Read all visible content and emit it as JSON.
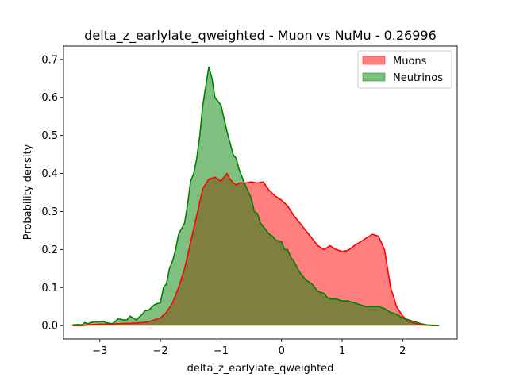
{
  "chart_data": {
    "type": "area",
    "title": "delta_z_earlylate_qweighted - Muon vs NuMu - 0.26996",
    "xlabel": "delta_z_earlylate_qweighted",
    "ylabel": "Probability density",
    "xlim": [
      -3.6,
      2.9
    ],
    "ylim": [
      -0.035,
      0.735
    ],
    "xticks": [
      -3,
      -2,
      -1,
      0,
      1,
      2
    ],
    "xtick_labels": [
      "−3",
      "−2",
      "−1",
      "0",
      "1",
      "2"
    ],
    "yticks": [
      0.0,
      0.1,
      0.2,
      0.3,
      0.4,
      0.5,
      0.6,
      0.7
    ],
    "ytick_labels": [
      "0.0",
      "0.1",
      "0.2",
      "0.3",
      "0.4",
      "0.5",
      "0.6",
      "0.7"
    ],
    "grid": false,
    "legend_position": "top-right",
    "series": [
      {
        "name": "Muons",
        "line_color": "#ff0000",
        "fill_color": "#ff0000",
        "fill_opacity": 0.5,
        "x": [
          -3.45,
          -3.3,
          -3.2,
          -3.1,
          -3.0,
          -2.9,
          -2.8,
          -2.7,
          -2.6,
          -2.5,
          -2.4,
          -2.3,
          -2.2,
          -2.1,
          -2.0,
          -1.9,
          -1.8,
          -1.7,
          -1.6,
          -1.5,
          -1.4,
          -1.3,
          -1.2,
          -1.1,
          -1.0,
          -0.95,
          -0.9,
          -0.85,
          -0.8,
          -0.75,
          -0.7,
          -0.6,
          -0.5,
          -0.4,
          -0.3,
          -0.25,
          -0.2,
          -0.1,
          0.0,
          0.1,
          0.2,
          0.3,
          0.4,
          0.5,
          0.6,
          0.7,
          0.8,
          0.9,
          1.0,
          1.1,
          1.2,
          1.3,
          1.4,
          1.5,
          1.6,
          1.7,
          1.8,
          1.9,
          2.0,
          2.1,
          2.2,
          2.3,
          2.4,
          2.5,
          2.6
        ],
        "y": [
          0.0,
          0.0,
          0.002,
          0.003,
          0.004,
          0.004,
          0.004,
          0.005,
          0.006,
          0.006,
          0.007,
          0.008,
          0.01,
          0.015,
          0.02,
          0.035,
          0.06,
          0.1,
          0.15,
          0.22,
          0.29,
          0.36,
          0.385,
          0.39,
          0.38,
          0.39,
          0.4,
          0.385,
          0.375,
          0.37,
          0.375,
          0.375,
          0.378,
          0.375,
          0.378,
          0.365,
          0.355,
          0.34,
          0.33,
          0.315,
          0.29,
          0.27,
          0.25,
          0.23,
          0.21,
          0.2,
          0.21,
          0.2,
          0.195,
          0.198,
          0.21,
          0.22,
          0.23,
          0.24,
          0.235,
          0.2,
          0.1,
          0.05,
          0.025,
          0.012,
          0.006,
          0.003,
          0.001,
          0.0,
          0.0
        ]
      },
      {
        "name": "Neutrinos",
        "line_color": "#008000",
        "fill_color": "#008000",
        "fill_opacity": 0.5,
        "x": [
          -3.45,
          -3.35,
          -3.3,
          -3.25,
          -3.2,
          -3.1,
          -3.0,
          -2.95,
          -2.9,
          -2.8,
          -2.75,
          -2.7,
          -2.6,
          -2.55,
          -2.5,
          -2.45,
          -2.4,
          -2.3,
          -2.25,
          -2.2,
          -2.1,
          -2.05,
          -2.0,
          -1.95,
          -1.9,
          -1.85,
          -1.8,
          -1.75,
          -1.7,
          -1.6,
          -1.55,
          -1.5,
          -1.45,
          -1.4,
          -1.35,
          -1.3,
          -1.25,
          -1.2,
          -1.15,
          -1.1,
          -1.05,
          -1.0,
          -0.9,
          -0.8,
          -0.75,
          -0.7,
          -0.6,
          -0.5,
          -0.45,
          -0.4,
          -0.35,
          -0.3,
          -0.25,
          -0.2,
          -0.15,
          -0.1,
          0.0,
          0.05,
          0.1,
          0.15,
          0.2,
          0.3,
          0.4,
          0.45,
          0.5,
          0.6,
          0.7,
          0.75,
          0.8,
          0.9,
          1.0,
          1.1,
          1.2,
          1.3,
          1.4,
          1.5,
          1.6,
          1.7,
          1.8,
          1.9,
          2.0,
          2.1,
          2.2,
          2.3,
          2.4,
          2.5,
          2.6
        ],
        "y": [
          0.002,
          0.003,
          0.002,
          0.008,
          0.005,
          0.01,
          0.01,
          0.012,
          0.008,
          0.005,
          0.01,
          0.018,
          0.015,
          0.015,
          0.025,
          0.02,
          0.015,
          0.03,
          0.04,
          0.04,
          0.055,
          0.058,
          0.06,
          0.1,
          0.11,
          0.15,
          0.17,
          0.2,
          0.24,
          0.27,
          0.32,
          0.38,
          0.4,
          0.44,
          0.5,
          0.58,
          0.63,
          0.68,
          0.65,
          0.6,
          0.59,
          0.58,
          0.51,
          0.45,
          0.44,
          0.41,
          0.37,
          0.335,
          0.3,
          0.295,
          0.27,
          0.26,
          0.25,
          0.24,
          0.235,
          0.225,
          0.22,
          0.2,
          0.2,
          0.18,
          0.17,
          0.14,
          0.12,
          0.115,
          0.11,
          0.09,
          0.085,
          0.075,
          0.07,
          0.07,
          0.065,
          0.065,
          0.06,
          0.055,
          0.05,
          0.05,
          0.05,
          0.045,
          0.035,
          0.03,
          0.02,
          0.015,
          0.01,
          0.005,
          0.002,
          0.001,
          0.0
        ]
      }
    ]
  }
}
